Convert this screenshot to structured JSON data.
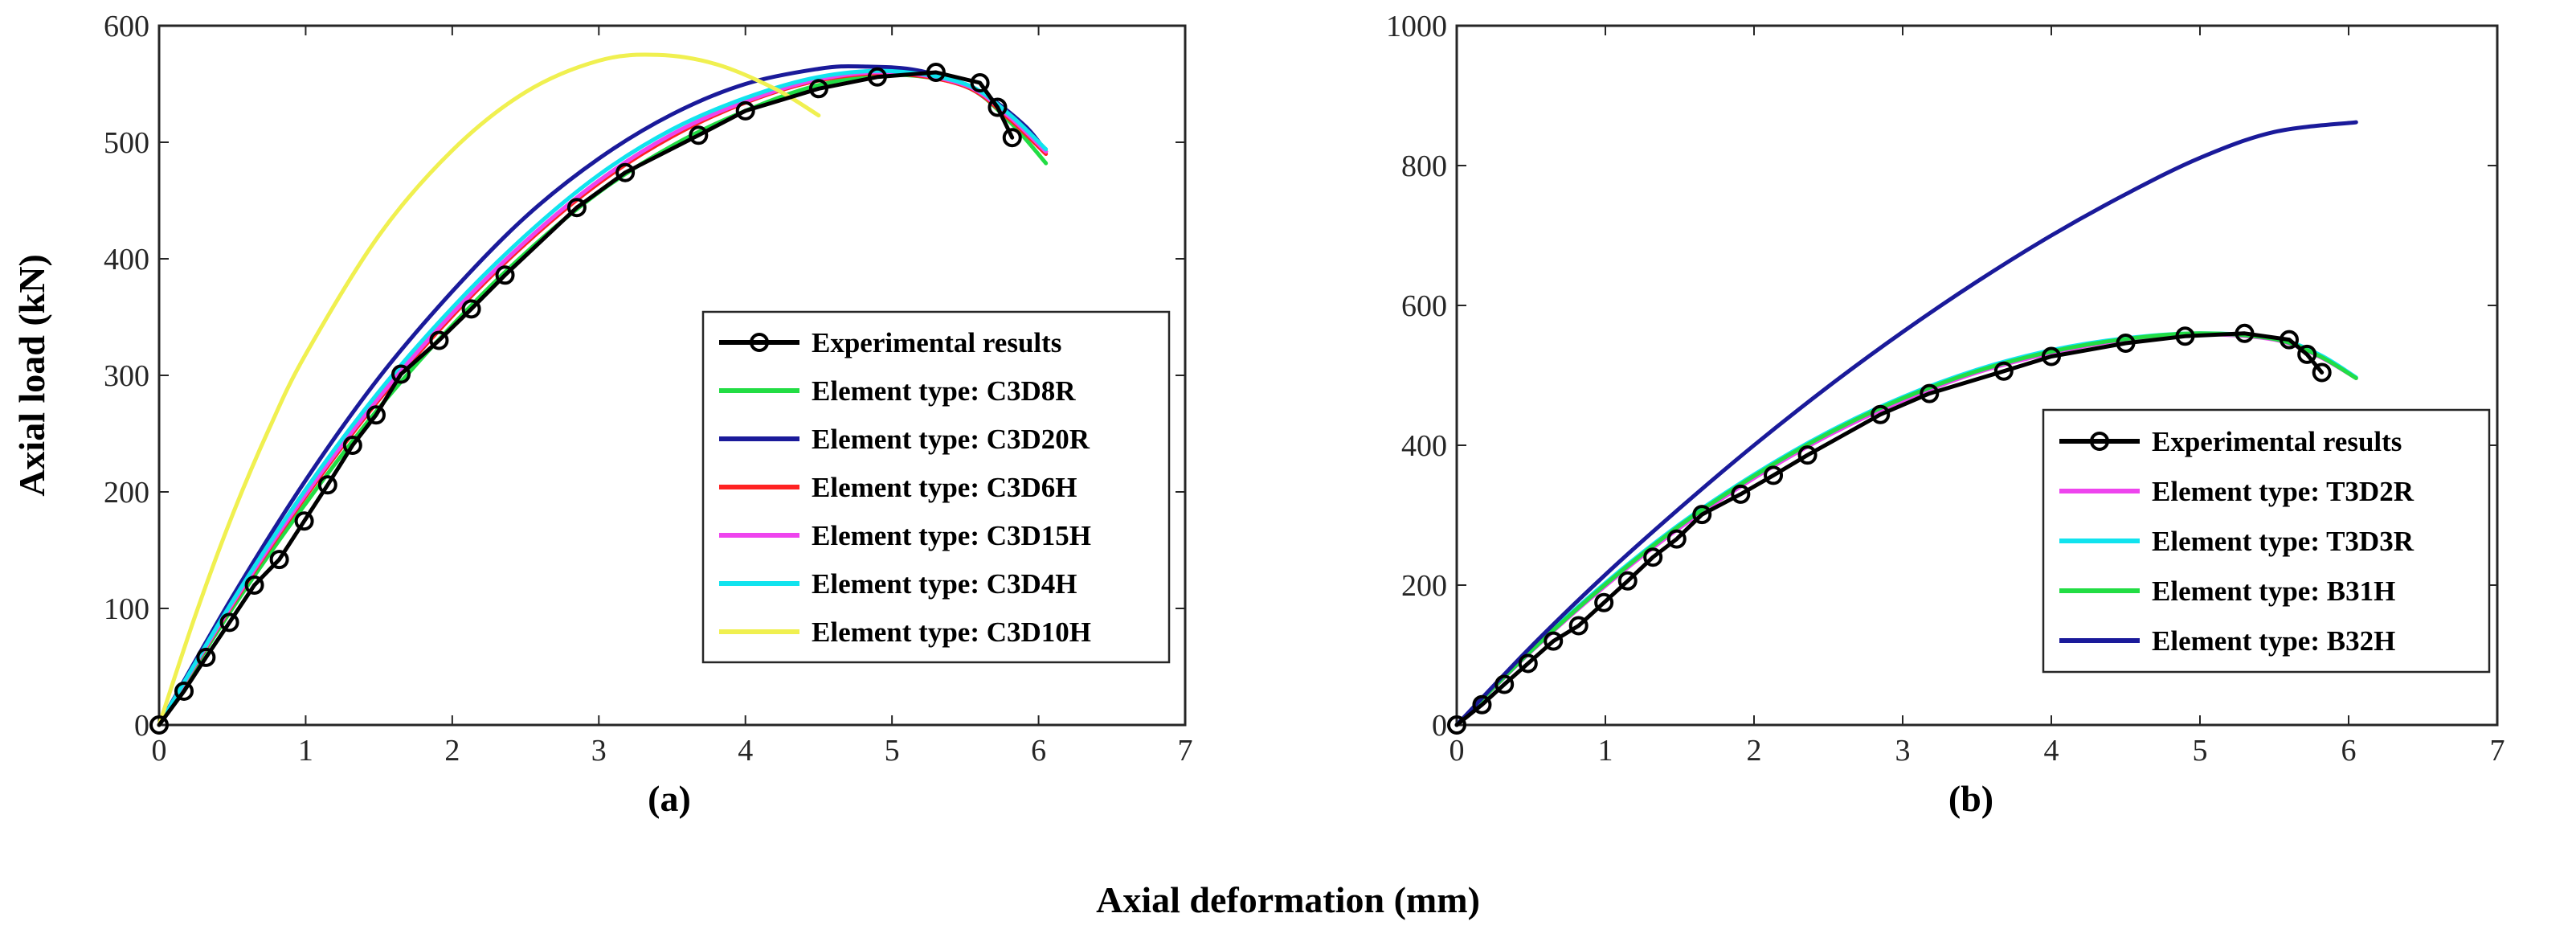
{
  "figure": {
    "shared_xlabel": "Axial deformation (mm)",
    "ylabel": "Axial load (kN)"
  },
  "chart_data": [
    {
      "type": "line",
      "panel_label": "(a)",
      "xlim": [
        0,
        7
      ],
      "ylim": [
        0,
        600
      ],
      "xticks": [
        "0",
        "1",
        "2",
        "3",
        "4",
        "5",
        "6",
        "7"
      ],
      "yticks": [
        "0",
        "100",
        "200",
        "300",
        "400",
        "500",
        "600"
      ],
      "xtick_values": [
        0,
        1,
        2,
        3,
        4,
        5,
        6,
        7
      ],
      "ytick_values": [
        0,
        100,
        200,
        300,
        400,
        500,
        600
      ],
      "legend_position": "lower-right",
      "series": [
        {
          "name": "Experimental results",
          "color": "#000000",
          "marker": "circle",
          "x": [
            0,
            0.17,
            0.32,
            0.48,
            0.65,
            0.82,
            0.99,
            1.15,
            1.32,
            1.48,
            1.65,
            1.91,
            2.13,
            2.36,
            2.85,
            3.18,
            3.68,
            4.0,
            4.5,
            4.9,
            5.3,
            5.6,
            5.72,
            5.82
          ],
          "y": [
            0,
            29,
            58,
            88,
            120,
            142,
            175,
            206,
            240,
            266,
            301,
            330,
            357,
            386,
            444,
            474,
            506,
            527,
            546,
            556,
            560,
            551,
            530,
            504
          ]
        },
        {
          "name": "Element type: C3D8R",
          "color": "#22dd44",
          "x": [
            0,
            0.5,
            1,
            1.5,
            2,
            2.5,
            3,
            3.5,
            4,
            4.5,
            5,
            5.5,
            5.8,
            6.05
          ],
          "y": [
            0,
            100,
            190,
            272,
            343,
            405,
            457,
            497,
            527,
            549,
            558,
            548,
            518,
            482
          ]
        },
        {
          "name": "Element type: C3D20R",
          "color": "#1a1a9a",
          "x": [
            0,
            0.5,
            1,
            1.5,
            2,
            2.5,
            3,
            3.5,
            4,
            4.5,
            4.8,
            5.2,
            5.6,
            5.9,
            6.05
          ],
          "y": [
            0,
            110,
            210,
            298,
            372,
            436,
            486,
            524,
            550,
            563,
            565,
            561,
            543,
            515,
            492
          ]
        },
        {
          "name": "Element type: C3D6H",
          "color": "#ff2222",
          "x": [
            0,
            0.5,
            1,
            1.5,
            2,
            2.5,
            3,
            3.5,
            4,
            4.5,
            5,
            5.5,
            5.8,
            6.05
          ],
          "y": [
            0,
            103,
            196,
            279,
            351,
            413,
            465,
            505,
            534,
            553,
            559,
            548,
            520,
            490
          ]
        },
        {
          "name": "Element type: C3D15H",
          "color": "#ee44ee",
          "x": [
            0,
            0.5,
            1,
            1.5,
            2,
            2.5,
            3,
            3.5,
            4,
            4.5,
            5,
            5.5,
            5.8,
            6.05
          ],
          "y": [
            0,
            104,
            198,
            281,
            353,
            415,
            467,
            507,
            535,
            554,
            560,
            549,
            522,
            492
          ]
        },
        {
          "name": "Element type: C3D4H",
          "color": "#11e3ee",
          "x": [
            0,
            0.5,
            1,
            1.5,
            2,
            2.5,
            3,
            3.5,
            4,
            4.5,
            5,
            5.5,
            5.8,
            6.05
          ],
          "y": [
            0,
            106,
            202,
            286,
            358,
            420,
            472,
            511,
            538,
            556,
            561,
            550,
            524,
            494
          ]
        },
        {
          "name": "Element type: C3D10H",
          "color": "#f0f050",
          "x": [
            0,
            0.25,
            0.5,
            0.75,
            1,
            1.5,
            2,
            2.5,
            3,
            3.4,
            3.8,
            4.2,
            4.5
          ],
          "y": [
            0,
            95,
            180,
            254,
            318,
            420,
            493,
            543,
            570,
            575,
            567,
            546,
            523
          ]
        }
      ]
    },
    {
      "type": "line",
      "panel_label": "(b)",
      "xlim": [
        0,
        7
      ],
      "ylim": [
        0,
        1000
      ],
      "xticks": [
        "0",
        "1",
        "2",
        "3",
        "4",
        "5",
        "6",
        "7"
      ],
      "yticks": [
        "0",
        "200",
        "400",
        "600",
        "800",
        "1000"
      ],
      "xtick_values": [
        0,
        1,
        2,
        3,
        4,
        5,
        6,
        7
      ],
      "ytick_values": [
        0,
        200,
        400,
        600,
        800,
        1000
      ],
      "legend_position": "lower-right",
      "series": [
        {
          "name": "Experimental results",
          "color": "#000000",
          "marker": "circle",
          "x": [
            0,
            0.17,
            0.32,
            0.48,
            0.65,
            0.82,
            0.99,
            1.15,
            1.32,
            1.48,
            1.65,
            1.91,
            2.13,
            2.36,
            2.85,
            3.18,
            3.68,
            4.0,
            4.5,
            4.9,
            5.3,
            5.6,
            5.72,
            5.82
          ],
          "y": [
            0,
            29,
            58,
            88,
            120,
            142,
            175,
            206,
            240,
            266,
            301,
            330,
            357,
            386,
            444,
            474,
            506,
            527,
            546,
            556,
            560,
            551,
            530,
            504
          ]
        },
        {
          "name": "Element type: T3D2R",
          "color": "#ee44ee",
          "x": [
            0,
            0.5,
            1,
            1.5,
            2,
            2.5,
            3,
            3.5,
            4,
            4.5,
            5,
            5.5,
            5.8,
            6.05
          ],
          "y": [
            0,
            105,
            199,
            282,
            353,
            414,
            464,
            504,
            532,
            551,
            559,
            551,
            527,
            496
          ]
        },
        {
          "name": "Element type: T3D3R",
          "color": "#11e3ee",
          "x": [
            0,
            0.5,
            1,
            1.5,
            2,
            2.5,
            3,
            3.5,
            4,
            4.5,
            5,
            5.5,
            5.8,
            6.05
          ],
          "y": [
            0,
            107,
            203,
            287,
            358,
            419,
            469,
            508,
            536,
            553,
            560,
            553,
            530,
            497
          ]
        },
        {
          "name": "Element type: B31H",
          "color": "#22dd44",
          "x": [
            0,
            0.5,
            1,
            1.5,
            2,
            2.5,
            3,
            3.5,
            4,
            4.5,
            5,
            5.5,
            5.8,
            6.05
          ],
          "y": [
            0,
            106,
            201,
            285,
            356,
            417,
            467,
            506,
            534,
            552,
            560,
            552,
            528,
            496
          ]
        },
        {
          "name": "Element type: B32H",
          "color": "#1a1a9a",
          "x": [
            0,
            0.5,
            1,
            1.5,
            2,
            2.5,
            3,
            3.5,
            4,
            4.5,
            5,
            5.5,
            6.05
          ],
          "y": [
            0,
            112,
            215,
            310,
            400,
            484,
            562,
            634,
            700,
            759,
            811,
            848,
            862
          ]
        }
      ]
    }
  ]
}
